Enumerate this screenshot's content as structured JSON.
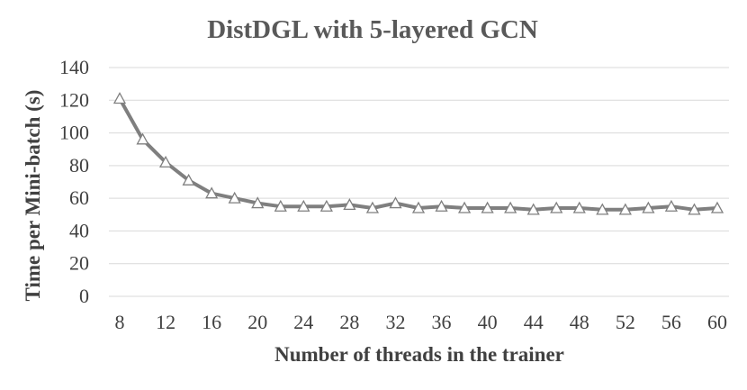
{
  "chart_data": {
    "type": "line",
    "title": "DistDGL with 5-layered GCN",
    "xlabel": "Number of  threads in the trainer",
    "ylabel": "Time per Mini-batch (s)",
    "x": [
      8,
      10,
      12,
      14,
      16,
      18,
      20,
      22,
      24,
      26,
      28,
      30,
      32,
      34,
      36,
      38,
      40,
      42,
      44,
      46,
      48,
      50,
      52,
      54,
      56,
      58,
      60
    ],
    "x_tick_labels": [
      "8",
      "12",
      "16",
      "20",
      "24",
      "28",
      "32",
      "36",
      "40",
      "44",
      "48",
      "52",
      "56",
      "60"
    ],
    "y_tick_labels": [
      "0",
      "20",
      "40",
      "60",
      "80",
      "100",
      "120",
      "140"
    ],
    "xlim": [
      8,
      60
    ],
    "ylim": [
      0,
      140
    ],
    "grid": true,
    "marker": "triangle",
    "series": [
      {
        "values": [
          121,
          96,
          82,
          71,
          63,
          60,
          57,
          55,
          55,
          55,
          56,
          54,
          57,
          54,
          55,
          54,
          54,
          54,
          53,
          54,
          54,
          53,
          53,
          54,
          55,
          53,
          54
        ],
        "color": "#7f7f7f"
      }
    ]
  }
}
